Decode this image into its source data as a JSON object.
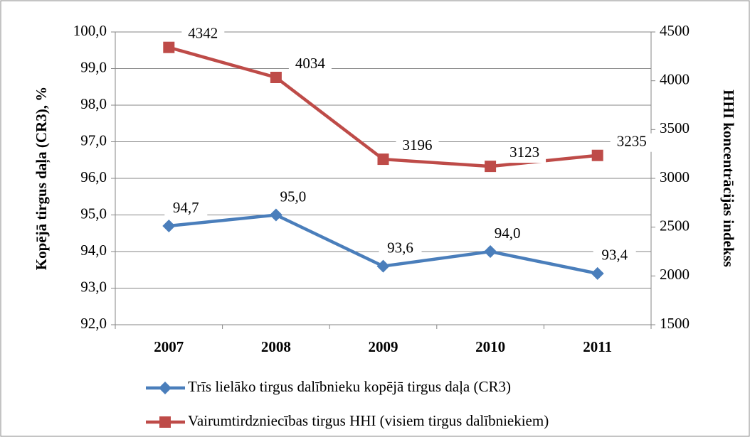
{
  "chart_data": {
    "type": "line",
    "y_label": "Kopējā tirgus daļa (CR3), %",
    "y2_label": "HHI koncentrācijas indekss",
    "categories": [
      "2007",
      "2008",
      "2009",
      "2010",
      "2011"
    ],
    "series": [
      {
        "name": "Trīs lielāko tirgus dalībnieku kopējā tirgus daļa (CR3)",
        "color": "#4a7ebb",
        "marker": "diamond",
        "values": [
          94.7,
          95.0,
          93.6,
          94.0,
          93.4
        ],
        "value_labels": [
          "94,7",
          "95,0",
          "93,6",
          "94,0",
          "93,4"
        ]
      },
      {
        "name": "Vairumtirdzniecības tirgus HHI (visiem tirgus dalībniekiem)",
        "color": "#be4b48",
        "marker": "square",
        "axis": "y2",
        "values": [
          4342,
          4034,
          3196,
          3123,
          3235
        ]
      }
    ],
    "ylim": [
      92,
      100
    ],
    "yticks": [
      {
        "value": 92,
        "label": "92,0"
      },
      {
        "value": 93,
        "label": "93,0"
      },
      {
        "value": 94,
        "label": "94,0"
      },
      {
        "value": 95,
        "label": "95,0"
      },
      {
        "value": 96,
        "label": "96,0"
      },
      {
        "value": 97,
        "label": "97,0"
      },
      {
        "value": 98,
        "label": "98,0"
      },
      {
        "value": 99,
        "label": "99,0"
      },
      {
        "value": 100,
        "label": "100,0"
      }
    ],
    "y2lim": [
      1500,
      4500
    ],
    "y2ticks": [
      1500,
      2000,
      2500,
      3000,
      3500,
      4000,
      4500
    ],
    "grid": true,
    "legend": "bottom"
  }
}
